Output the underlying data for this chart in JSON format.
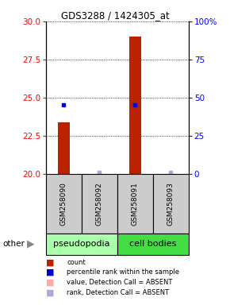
{
  "title": "GDS3288 / 1424305_at",
  "samples": [
    "GSM258090",
    "GSM258092",
    "GSM258091",
    "GSM258093"
  ],
  "bar_values": [
    23.4,
    0,
    29.0,
    0
  ],
  "rank_pct": [
    45,
    1,
    45,
    1
  ],
  "absent_samples": [
    1,
    3
  ],
  "ylim_left": [
    20,
    30
  ],
  "ylim_right": [
    0,
    100
  ],
  "yticks_left": [
    20,
    22.5,
    25,
    27.5,
    30
  ],
  "yticks_right": [
    0,
    25,
    50,
    75,
    100
  ],
  "bar_color": "#bb2200",
  "rank_color_present": "#0000cc",
  "rank_color_absent": "#aaaadd",
  "group_info": [
    {
      "label": "pseudopodia",
      "start": 0,
      "end": 2,
      "color": "#aaffaa"
    },
    {
      "label": "cell bodies",
      "start": 2,
      "end": 4,
      "color": "#44dd44"
    }
  ],
  "sample_box_color": "#cccccc",
  "bar_width": 0.35,
  "fig_width": 2.9,
  "fig_height": 3.84
}
